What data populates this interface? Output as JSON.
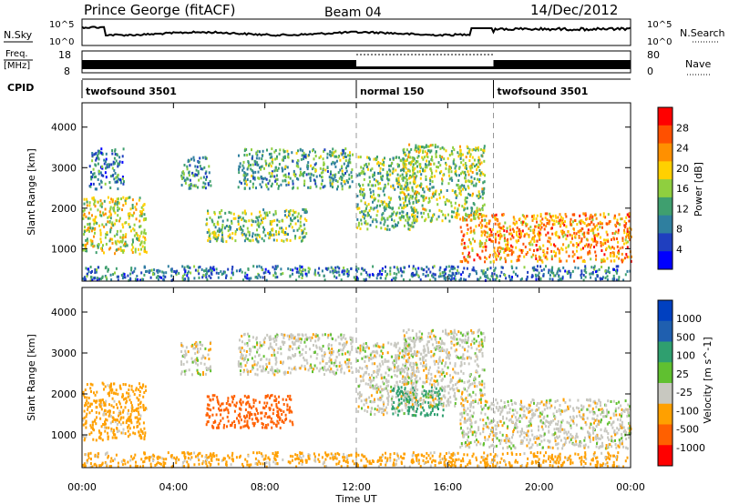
{
  "header": {
    "station": "Prince George (fitACF)",
    "beam": "Beam 04",
    "date": "14/Dec/2012"
  },
  "top_panels": {
    "nsky_label": "N.Sky",
    "nsky_ticks": [
      "10^5",
      "10^0"
    ],
    "nsearch_label": "N.Search",
    "freq_label_line1": "Freq.",
    "freq_label_line2": "[MHz]",
    "freq_ticks": [
      "18",
      "8"
    ],
    "nave_label": "Nave",
    "nave_ticks": [
      "80",
      "0"
    ],
    "cpid_label": "CPID",
    "cpid_segments": [
      {
        "label": "twofsound 3501",
        "start": 0,
        "end": 12
      },
      {
        "label": "normal 150",
        "start": 12,
        "end": 18
      },
      {
        "label": "twofsound 3501",
        "start": 18,
        "end": 24
      }
    ]
  },
  "x_axis": {
    "label": "Time UT",
    "ticks": [
      "00:00",
      "04:00",
      "08:00",
      "12:00",
      "16:00",
      "20:00",
      "00:00"
    ]
  },
  "colors": {
    "power_scale": [
      "#0000ff",
      "#1f3fbf",
      "#2f7f9f",
      "#3f9f6f",
      "#8fcf3f",
      "#ffd000",
      "#ff9000",
      "#ff5000",
      "#ff0000"
    ],
    "velocity_scale": [
      "#ff0000",
      "#ff6000",
      "#ffa000",
      "#c8c8c0",
      "#60c030",
      "#2f9f6f",
      "#1f5faf",
      "#0040c0"
    ]
  },
  "chart_data": [
    {
      "type": "heatmap",
      "name": "power",
      "ylabel": "Slant Range [km]",
      "xlim": [
        0,
        24
      ],
      "ylim": [
        200,
        4600
      ],
      "yticks": [
        "1000",
        "2000",
        "3000",
        "4000"
      ],
      "colorbar_label": "Power [dB]",
      "colorbar_ticks": [
        "4",
        "8",
        "12",
        "16",
        "20",
        "24",
        "28"
      ],
      "echo_regions": [
        {
          "t0": 0.0,
          "t1": 2.8,
          "r0": 900,
          "r1": 2300,
          "level": 18
        },
        {
          "t0": 0.3,
          "t1": 1.8,
          "r0": 2500,
          "r1": 3500,
          "level": 8
        },
        {
          "t0": 4.3,
          "t1": 5.6,
          "r0": 2500,
          "r1": 3300,
          "level": 10
        },
        {
          "t0": 5.4,
          "t1": 9.8,
          "r0": 1200,
          "r1": 2000,
          "level": 14
        },
        {
          "t0": 6.8,
          "t1": 11.8,
          "r0": 2500,
          "r1": 3500,
          "level": 12
        },
        {
          "t0": 12.0,
          "t1": 14.6,
          "r0": 1500,
          "r1": 3300,
          "level": 14
        },
        {
          "t0": 14.0,
          "t1": 17.6,
          "r0": 1700,
          "r1": 3600,
          "level": 16
        },
        {
          "t0": 16.5,
          "t1": 24.0,
          "r0": 700,
          "r1": 1900,
          "level": 24
        },
        {
          "t0": 0.0,
          "t1": 24.0,
          "r0": 200,
          "r1": 600,
          "level": 8
        }
      ]
    },
    {
      "type": "heatmap",
      "name": "velocity",
      "ylabel": "Slant Range [km]",
      "xlim": [
        0,
        24
      ],
      "ylim": [
        200,
        4600
      ],
      "yticks": [
        "1000",
        "2000",
        "3000",
        "4000"
      ],
      "colorbar_label": "Velocity [m s^-1]",
      "colorbar_ticks": [
        "1000",
        "500",
        "100",
        "25",
        "-25",
        "-100",
        "-500",
        "-1000"
      ],
      "echo_regions": [
        {
          "t0": 0.0,
          "t1": 2.8,
          "r0": 900,
          "r1": 2300,
          "velocity": -100
        },
        {
          "t0": 4.3,
          "t1": 5.6,
          "r0": 2500,
          "r1": 3300,
          "velocity": 0
        },
        {
          "t0": 5.4,
          "t1": 9.2,
          "r0": 1200,
          "r1": 2000,
          "velocity": -500
        },
        {
          "t0": 6.8,
          "t1": 11.8,
          "r0": 2500,
          "r1": 3500,
          "velocity": 0
        },
        {
          "t0": 12.0,
          "t1": 14.6,
          "r0": 1500,
          "r1": 3300,
          "velocity": 0
        },
        {
          "t0": 13.5,
          "t1": 15.8,
          "r0": 1500,
          "r1": 2200,
          "velocity": 300
        },
        {
          "t0": 14.0,
          "t1": 17.6,
          "r0": 1700,
          "r1": 3600,
          "velocity": 0
        },
        {
          "t0": 16.5,
          "t1": 24.0,
          "r0": 700,
          "r1": 1900,
          "velocity": 0
        },
        {
          "t0": 0.0,
          "t1": 24.0,
          "r0": 200,
          "r1": 600,
          "velocity": -100
        }
      ]
    }
  ]
}
